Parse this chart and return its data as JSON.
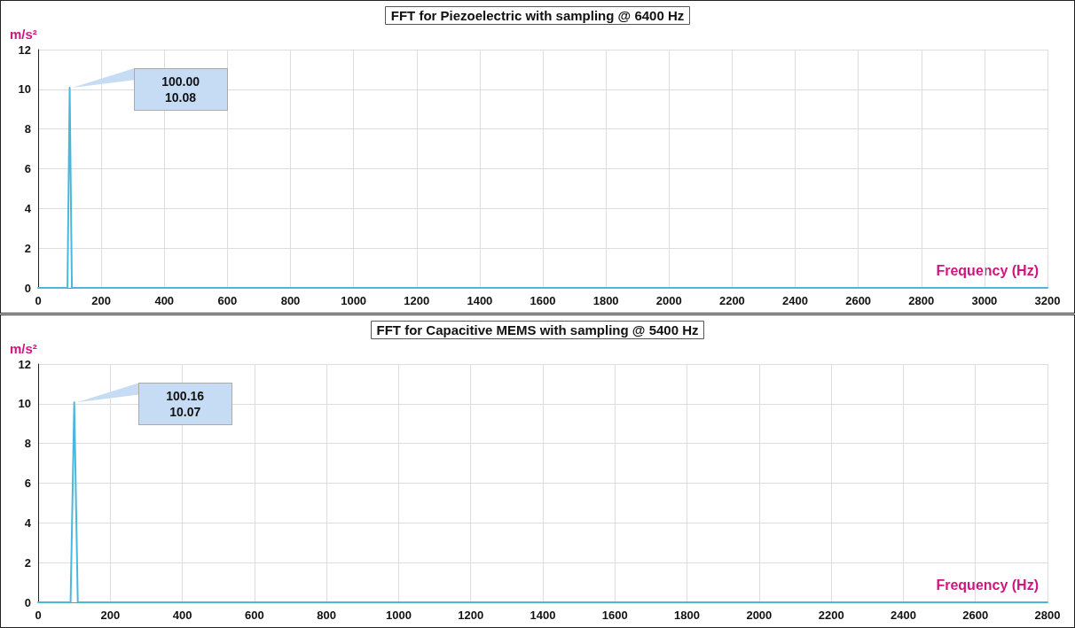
{
  "chart_data": [
    {
      "type": "line",
      "title": "FFT for Piezoelectric with sampling @ 6400 Hz",
      "ylabel": "m/s²",
      "xlabel": "Frequency (Hz)",
      "x": [
        0,
        93,
        100,
        107,
        300,
        3200
      ],
      "series": [
        {
          "color": "#4ab8dc",
          "values": [
            0,
            0,
            10.08,
            0,
            0,
            0
          ]
        }
      ],
      "annotations": [
        "100.00\n10.08"
      ],
      "xlim": [
        0,
        3200
      ],
      "xticks": [
        0,
        200,
        400,
        600,
        800,
        1000,
        1200,
        1400,
        1600,
        1800,
        2000,
        2200,
        2400,
        2600,
        2800,
        3000,
        3200
      ],
      "ylim": [
        0,
        12
      ],
      "yticks": [
        0,
        2,
        4,
        6,
        8,
        10,
        12
      ],
      "grid": true,
      "marker": "none",
      "line_style": "solid"
    },
    {
      "type": "line",
      "title": "FFT for Capacitive MEMS with sampling @ 5400 Hz",
      "ylabel": "m/s²",
      "xlabel": "Frequency (Hz)",
      "x": [
        0,
        90,
        100.16,
        110,
        400,
        2800
      ],
      "series": [
        {
          "color": "#4ab8dc",
          "values": [
            0,
            0,
            10.07,
            0,
            0,
            0
          ]
        }
      ],
      "annotations": [
        "100.16\n10.07"
      ],
      "xlim": [
        0,
        2800
      ],
      "xticks": [
        0,
        200,
        400,
        600,
        800,
        1000,
        1200,
        1400,
        1600,
        1800,
        2000,
        2200,
        2400,
        2600,
        2800
      ],
      "ylim": [
        0,
        12
      ],
      "yticks": [
        0,
        2,
        4,
        6,
        8,
        10,
        12
      ],
      "grid": true,
      "marker": "none",
      "line_style": "solid"
    }
  ]
}
